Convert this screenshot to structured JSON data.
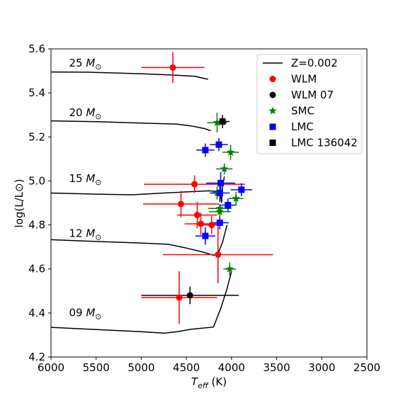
{
  "chart_data": {
    "type": "scatter",
    "xlabel": "T_eff (K)",
    "xlabel_main": "T",
    "xlabel_sub": "eff",
    "xlabel_unit": " (K)",
    "ylabel": "log(L/L⊙)",
    "xlim": [
      6000,
      2500
    ],
    "ylim": [
      4.2,
      5.6
    ],
    "x_ticks": [
      "6000",
      "5500",
      "5000",
      "4500",
      "4000",
      "3500",
      "3000",
      "2500"
    ],
    "y_ticks": [
      "4.2",
      "4.4",
      "4.6",
      "4.8",
      "5.0",
      "5.2",
      "5.4",
      "5.6"
    ],
    "legend_position": "top-right",
    "colors": {
      "track": "#000000",
      "WLM": "#ff0000",
      "WLM 07": "#000000",
      "SMC": "#008000",
      "LMC": "#0000ff",
      "LMC 136042": "#000000"
    },
    "tracks": [
      {
        "name": "25 M⊙",
        "mass": "25",
        "label_x": 5800,
        "label_y": 5.52,
        "points": [
          [
            6000,
            5.495
          ],
          [
            5600,
            5.494
          ],
          [
            5000,
            5.487
          ],
          [
            4600,
            5.48
          ],
          [
            4400,
            5.475
          ],
          [
            4330,
            5.468
          ],
          [
            4260,
            5.462
          ]
        ]
      },
      {
        "name": "20 M⊙",
        "mass": "20",
        "label_x": 5800,
        "label_y": 5.295,
        "points": [
          [
            6000,
            5.273
          ],
          [
            5500,
            5.269
          ],
          [
            5000,
            5.263
          ],
          [
            4600,
            5.258
          ],
          [
            4450,
            5.25
          ],
          [
            4300,
            5.238
          ],
          [
            4230,
            5.228
          ]
        ]
      },
      {
        "name": "15 M⊙",
        "mass": "15",
        "label_x": 5800,
        "label_y": 4.995,
        "points": [
          [
            6000,
            4.945
          ],
          [
            5500,
            4.94
          ],
          [
            5100,
            4.937
          ],
          [
            4750,
            4.945
          ],
          [
            4400,
            4.952
          ],
          [
            4250,
            4.955
          ],
          [
            4150,
            4.952
          ],
          [
            4120,
            4.93
          ],
          [
            4110,
            4.9
          ],
          [
            4100,
            4.97
          ],
          [
            4080,
            5.02
          ]
        ]
      },
      {
        "name": "12 M⊙",
        "mass": "12",
        "label_x": 5800,
        "label_y": 4.745,
        "points": [
          [
            6000,
            4.733
          ],
          [
            5500,
            4.725
          ],
          [
            5000,
            4.718
          ],
          [
            4700,
            4.712
          ],
          [
            4500,
            4.695
          ],
          [
            4300,
            4.675
          ],
          [
            4200,
            4.662
          ],
          [
            4150,
            4.67
          ],
          [
            4100,
            4.72
          ],
          [
            4050,
            4.8
          ]
        ]
      },
      {
        "name": "09 M⊙",
        "mass": "09",
        "label_x": 5800,
        "label_y": 4.385,
        "points": [
          [
            6000,
            4.335
          ],
          [
            5500,
            4.325
          ],
          [
            5000,
            4.315
          ],
          [
            4750,
            4.308
          ],
          [
            4600,
            4.315
          ],
          [
            4450,
            4.326
          ],
          [
            4200,
            4.336
          ],
          [
            4120,
            4.42
          ],
          [
            4050,
            4.51
          ],
          [
            4000,
            4.59
          ]
        ]
      }
    ],
    "series": [
      {
        "name": "Z=0.002",
        "marker": "line"
      },
      {
        "name": "WLM",
        "marker": "circle",
        "points": [
          {
            "x": 4650,
            "y": 5.515,
            "xerr": 350,
            "yerr": 0.07
          },
          {
            "x": 4410,
            "y": 4.985,
            "xerr": 560,
            "yerr": 0.04
          },
          {
            "x": 4560,
            "y": 4.895,
            "xerr": 420,
            "yerr": 0.06
          },
          {
            "x": 4380,
            "y": 4.845,
            "xerr": 220,
            "yerr": 0.06
          },
          {
            "x": 4340,
            "y": 4.805,
            "xerr": 180,
            "yerr": 0.05
          },
          {
            "x": 4220,
            "y": 4.8,
            "xerr": 120,
            "yerr": 0.04
          },
          {
            "x": 4150,
            "y": 4.665,
            "xerr": 610,
            "yerr": 0.13
          },
          {
            "x": 4580,
            "y": 4.47,
            "xerr": 420,
            "yerr": 0.12
          }
        ]
      },
      {
        "name": "WLM 07",
        "marker": "circle",
        "points": [
          {
            "x": 4460,
            "y": 4.48,
            "xerr": 540,
            "yerr": 0.04
          }
        ]
      },
      {
        "name": "SMC",
        "marker": "star",
        "points": [
          {
            "x": 4160,
            "y": 5.265,
            "xerr": 110,
            "yerr": 0.045
          },
          {
            "x": 4010,
            "y": 5.13,
            "xerr": 90,
            "yerr": 0.035
          },
          {
            "x": 4080,
            "y": 5.055,
            "xerr": 90,
            "yerr": 0.025
          },
          {
            "x": 4160,
            "y": 4.945,
            "xerr": 60,
            "yerr": 0.03
          },
          {
            "x": 4130,
            "y": 4.875,
            "xerr": 130,
            "yerr": 0.02
          },
          {
            "x": 4130,
            "y": 4.86,
            "xerr": 120,
            "yerr": 0.02
          },
          {
            "x": 3950,
            "y": 4.92,
            "xerr": 80,
            "yerr": 0.03
          },
          {
            "x": 4020,
            "y": 4.6,
            "xerr": 70,
            "yerr": 0.03
          }
        ]
      },
      {
        "name": "LMC",
        "marker": "square",
        "points": [
          {
            "x": 4140,
            "y": 5.165,
            "xerr": 100,
            "yerr": 0.03
          },
          {
            "x": 4290,
            "y": 5.14,
            "xerr": 100,
            "yerr": 0.03
          },
          {
            "x": 4120,
            "y": 4.99,
            "xerr": 160,
            "yerr": 0.05
          },
          {
            "x": 4130,
            "y": 4.945,
            "xerr": 110,
            "yerr": 0.04
          },
          {
            "x": 3890,
            "y": 4.96,
            "xerr": 120,
            "yerr": 0.03
          },
          {
            "x": 4040,
            "y": 4.89,
            "xerr": 90,
            "yerr": 0.03
          },
          {
            "x": 4130,
            "y": 4.81,
            "xerr": 100,
            "yerr": 0.03
          },
          {
            "x": 4290,
            "y": 4.75,
            "xerr": 110,
            "yerr": 0.04
          }
        ]
      },
      {
        "name": "LMC 136042",
        "marker": "square",
        "points": [
          {
            "x": 4100,
            "y": 5.27,
            "xerr": 80,
            "yerr": 0.03
          }
        ]
      }
    ]
  }
}
